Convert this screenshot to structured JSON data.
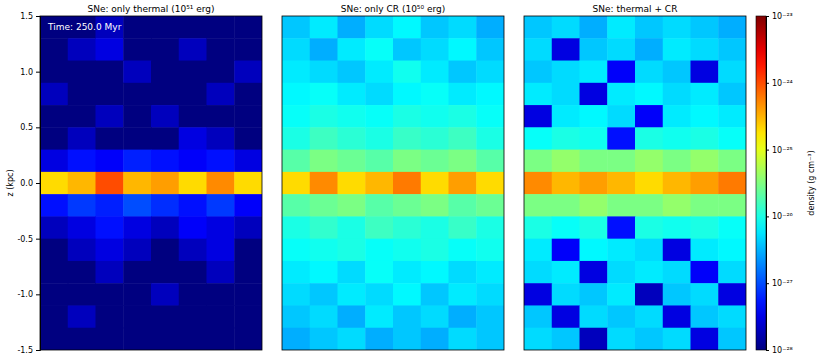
{
  "chart_data": [
    {
      "type": "heatmap",
      "title": "SNe: only thermal (10⁵¹ erg)",
      "ylabel": "z (kpc)",
      "annotation": "Time: 250.0 Myr",
      "ylim": [
        -1.5,
        1.5
      ],
      "yticks": [
        {
          "value": -1.5,
          "label": "-1.5"
        },
        {
          "value": -1,
          "label": "-1.0"
        },
        {
          "value": -0.5,
          "label": "-0.5"
        },
        {
          "value": 0,
          "label": "0.0"
        },
        {
          "value": 0.5,
          "label": "0.5"
        },
        {
          "value": 1,
          "label": "1.0"
        },
        {
          "value": 1.5,
          "label": "1.5"
        }
      ],
      "tick_labels": "y",
      "cells": [
        [
          1e-28,
          1e-28,
          2e-28,
          1e-28,
          1e-28,
          1e-28,
          1e-28,
          1e-28
        ],
        [
          1e-28,
          2e-28,
          3e-28,
          1e-28,
          1e-28,
          2e-28,
          1e-28,
          1e-28
        ],
        [
          1e-28,
          1e-28,
          1e-28,
          2e-28,
          1e-28,
          1e-28,
          1e-28,
          2e-28
        ],
        [
          2e-28,
          1e-28,
          1e-28,
          1e-28,
          1e-28,
          1e-28,
          2e-28,
          1e-28
        ],
        [
          1e-28,
          1e-28,
          2e-28,
          1e-28,
          2e-28,
          1e-28,
          1e-28,
          1e-28
        ],
        [
          1e-28,
          2e-28,
          1e-28,
          1e-28,
          1e-28,
          3e-28,
          2e-28,
          1e-28
        ],
        [
          3e-28,
          5e-28,
          4e-28,
          6e-28,
          5e-28,
          4e-28,
          5e-28,
          3e-28
        ],
        [
          2e-25,
          3e-25,
          1e-24,
          3e-25,
          4e-25,
          2e-25,
          5e-25,
          2e-25
        ],
        [
          5e-28,
          8e-28,
          6e-28,
          1e-27,
          7e-28,
          5e-28,
          8e-28,
          4e-28
        ],
        [
          2e-28,
          3e-28,
          5e-28,
          3e-28,
          2e-28,
          4e-28,
          3e-28,
          2e-28
        ],
        [
          1e-28,
          2e-28,
          3e-28,
          2e-28,
          1e-28,
          2e-28,
          3e-28,
          1e-28
        ],
        [
          1e-28,
          1e-28,
          2e-28,
          1e-28,
          1e-28,
          1e-28,
          2e-28,
          1e-28
        ],
        [
          1e-28,
          1e-28,
          1e-28,
          1e-28,
          2e-28,
          1e-28,
          1e-28,
          1e-28
        ],
        [
          1e-28,
          2e-28,
          1e-28,
          1e-28,
          1e-28,
          1e-28,
          1e-28,
          1e-28
        ],
        [
          1e-28,
          1e-28,
          1e-28,
          1e-28,
          1e-28,
          1e-28,
          1e-28,
          1e-28
        ]
      ]
    },
    {
      "type": "heatmap",
      "title": "SNe: only CR (10⁵⁰ erg)",
      "ylim": [
        -1.5,
        1.5
      ],
      "tick_labels": false,
      "cells": [
        [
          4e-27,
          6e-27,
          3e-27,
          5e-27,
          7e-27,
          4e-27,
          5e-27,
          3e-27
        ],
        [
          5e-27,
          3e-27,
          6e-27,
          8e-27,
          4e-27,
          5e-27,
          7e-27,
          4e-27
        ],
        [
          6e-27,
          5e-27,
          4e-27,
          6e-27,
          9e-27,
          6e-27,
          4e-27,
          5e-27
        ],
        [
          7e-27,
          8e-27,
          6e-27,
          5e-27,
          7e-27,
          8e-27,
          6e-27,
          7e-27
        ],
        [
          8e-27,
          1e-26,
          9e-27,
          8e-27,
          1e-26,
          9e-27,
          1e-26,
          8e-27
        ],
        [
          1e-26,
          1.5e-26,
          1.2e-26,
          1e-26,
          1.4e-26,
          1.2e-26,
          1.5e-26,
          1e-26
        ],
        [
          2e-26,
          3e-26,
          2.5e-26,
          2e-26,
          3e-26,
          2.5e-26,
          3e-26,
          2e-26
        ],
        [
          2e-25,
          5e-25,
          2e-25,
          3e-25,
          6e-25,
          2e-25,
          4e-25,
          2e-25
        ],
        [
          2e-26,
          2.5e-26,
          3e-26,
          2e-26,
          2.5e-26,
          3e-26,
          2e-26,
          2.5e-26
        ],
        [
          1e-26,
          1.3e-26,
          1e-26,
          1.5e-26,
          1.2e-26,
          1e-26,
          1.4e-26,
          1e-26
        ],
        [
          8e-27,
          9e-27,
          1e-26,
          8e-27,
          9e-27,
          1e-26,
          8e-27,
          9e-27
        ],
        [
          6e-27,
          7e-27,
          5e-27,
          8e-27,
          6e-27,
          7e-27,
          5e-27,
          6e-27
        ],
        [
          5e-27,
          4e-27,
          6e-27,
          5e-27,
          7e-27,
          4e-27,
          6e-27,
          5e-27
        ],
        [
          4e-27,
          5e-27,
          3e-27,
          6e-27,
          4e-27,
          5e-27,
          3e-27,
          4e-27
        ],
        [
          3e-27,
          4e-27,
          5e-27,
          3e-27,
          4e-27,
          3e-27,
          5e-27,
          4e-27
        ]
      ]
    },
    {
      "type": "heatmap",
      "title": "SNe: thermal + CR",
      "ylim": [
        -1.5,
        1.5
      ],
      "tick_labels": false,
      "cells": [
        [
          4e-27,
          5e-27,
          3e-27,
          6e-27,
          4e-27,
          5e-27,
          4e-27,
          3e-27
        ],
        [
          5e-27,
          3e-28,
          4e-27,
          5e-27,
          3e-27,
          6e-27,
          5e-27,
          4e-27
        ],
        [
          4e-27,
          5e-27,
          6e-27,
          4e-28,
          5e-27,
          4e-27,
          3e-28,
          5e-27
        ],
        [
          6e-27,
          5e-27,
          3e-28,
          6e-27,
          7e-27,
          5e-27,
          6e-27,
          4e-27
        ],
        [
          3e-28,
          6e-27,
          7e-27,
          5e-27,
          4e-28,
          6e-27,
          7e-27,
          6e-27
        ],
        [
          8e-27,
          1e-26,
          9e-27,
          5e-28,
          1e-26,
          9e-27,
          1e-26,
          8e-27
        ],
        [
          3e-26,
          4e-26,
          3e-26,
          3e-26,
          4e-26,
          3e-26,
          4e-26,
          3e-26
        ],
        [
          5e-25,
          3e-25,
          4e-25,
          3e-25,
          2e-25,
          3e-25,
          4e-25,
          6e-25
        ],
        [
          3e-26,
          3e-26,
          4e-26,
          3e-26,
          3e-26,
          4e-26,
          3e-26,
          3e-26
        ],
        [
          1e-26,
          8e-27,
          1e-26,
          5e-28,
          1e-26,
          9e-27,
          1e-26,
          8e-27
        ],
        [
          6e-27,
          4e-28,
          7e-27,
          6e-27,
          5e-27,
          3e-28,
          6e-27,
          7e-27
        ],
        [
          5e-27,
          6e-27,
          3e-28,
          5e-27,
          6e-27,
          5e-27,
          4e-28,
          5e-27
        ],
        [
          3e-28,
          5e-27,
          4e-27,
          6e-27,
          2e-28,
          4e-27,
          5e-27,
          3e-28
        ],
        [
          4e-27,
          3e-28,
          5e-27,
          4e-27,
          5e-27,
          3e-28,
          4e-27,
          5e-27
        ],
        [
          5e-27,
          4e-27,
          2e-28,
          5e-27,
          4e-27,
          5e-27,
          3e-28,
          4e-27
        ]
      ],
      "colorbar": {
        "label": "density (g cm⁻³)",
        "log": true,
        "lim": [
          1e-28,
          1e-23
        ],
        "ticks": [
          {
            "value": 1e-28,
            "label": "10⁻²⁸"
          },
          {
            "value": 1e-27,
            "label": "10⁻²⁷"
          },
          {
            "value": 1e-26,
            "label": "10⁻²⁶"
          },
          {
            "value": 1e-25,
            "label": "10⁻²⁵"
          },
          {
            "value": 1e-24,
            "label": "10⁻²⁴"
          },
          {
            "value": 1e-23,
            "label": "10⁻²³"
          }
        ]
      }
    }
  ]
}
